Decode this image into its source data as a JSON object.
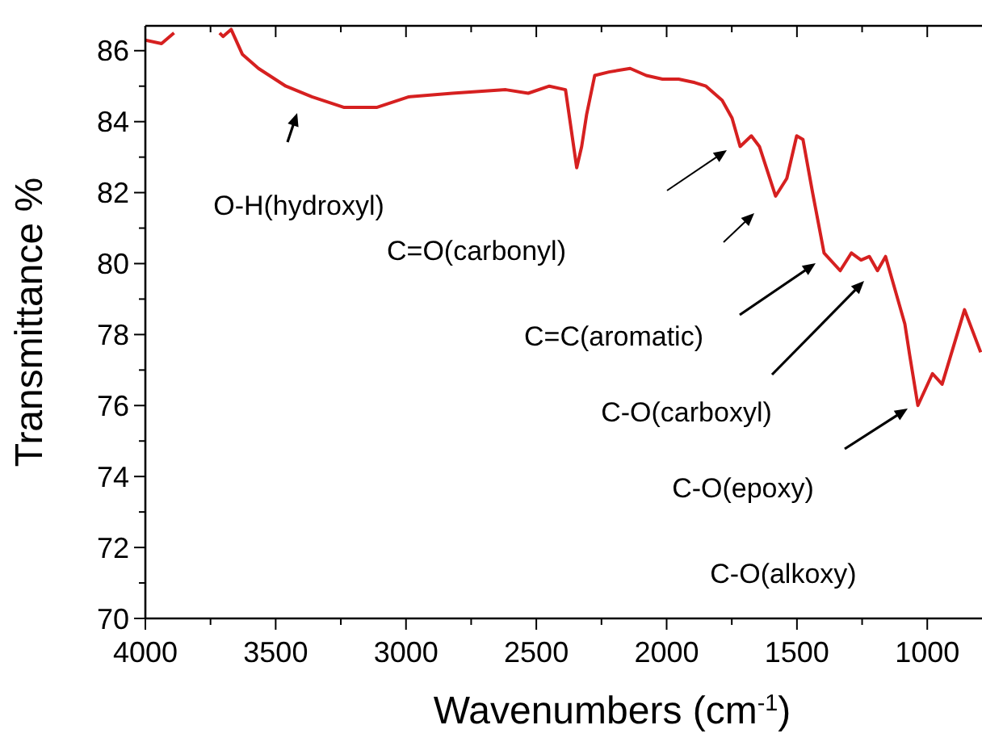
{
  "chart_data": {
    "type": "line",
    "xlabel": "Wavenumbers (cm$^{-1}$)",
    "ylabel": "Transmittance %",
    "x": [
      4000,
      3938,
      3890,
      3800,
      3715,
      3702,
      3671,
      3628,
      3566,
      3461,
      3361,
      3237,
      3113,
      2989,
      2822,
      2617,
      2531,
      2450,
      2388,
      2345,
      2326,
      2307,
      2276,
      2221,
      2140,
      2078,
      2016,
      1954,
      1892,
      1849,
      1787,
      1749,
      1718,
      1675,
      1644,
      1582,
      1539,
      1501,
      1477,
      1440,
      1396,
      1334,
      1291,
      1254,
      1222,
      1191,
      1160,
      1086,
      1067,
      1036,
      980,
      943,
      857,
      795
    ],
    "series": [
      {
        "color": "#d62020",
        "values": [
          86.3,
          86.2,
          86.5,
          null,
          86.5,
          86.4,
          86.6,
          85.9,
          85.5,
          85.0,
          84.7,
          84.4,
          84.4,
          84.7,
          84.8,
          84.9,
          84.8,
          85.0,
          84.9,
          82.7,
          83.3,
          84.2,
          85.3,
          85.4,
          85.5,
          85.3,
          85.2,
          85.2,
          85.1,
          85.0,
          84.6,
          84.1,
          83.3,
          83.6,
          83.3,
          81.9,
          82.4,
          83.6,
          83.5,
          82.0,
          80.3,
          79.8,
          80.3,
          80.1,
          80.2,
          79.8,
          80.2,
          78.3,
          77.4,
          76.0,
          76.9,
          76.6,
          78.7,
          77.5
        ]
      }
    ],
    "xlim": [
      4000,
      790
    ],
    "ylim": [
      70,
      86.7
    ],
    "xticks": [
      4000,
      {
        "value": 3750,
        "label": null
      },
      3500,
      {
        "value": 3250,
        "label": null
      },
      3000,
      {
        "value": 2750,
        "label": null
      },
      2500,
      {
        "value": 2250,
        "label": null
      },
      2000,
      {
        "value": 1750,
        "label": null
      },
      1500,
      {
        "value": 1250,
        "label": null
      },
      1000
    ],
    "yticks": [
      70,
      {
        "value": 71,
        "label": null
      },
      72,
      {
        "value": 73,
        "label": null
      },
      74,
      {
        "value": 75,
        "label": null
      },
      76,
      {
        "value": 77,
        "label": null
      },
      78,
      {
        "value": 79,
        "label": null
      },
      80,
      {
        "value": 81,
        "label": null
      },
      82,
      {
        "value": 83,
        "label": null
      },
      84,
      {
        "value": 85,
        "label": null
      },
      86
    ],
    "grid": false,
    "marker": "none",
    "line_style": "solid",
    "annotations": [
      "O-H(hydroxyl)",
      "C=O(carbonyl)",
      "C=C(aromatic)",
      "C-O(carboxyl)",
      "C-O(epoxy)",
      "C-O(alkoxy)"
    ]
  }
}
